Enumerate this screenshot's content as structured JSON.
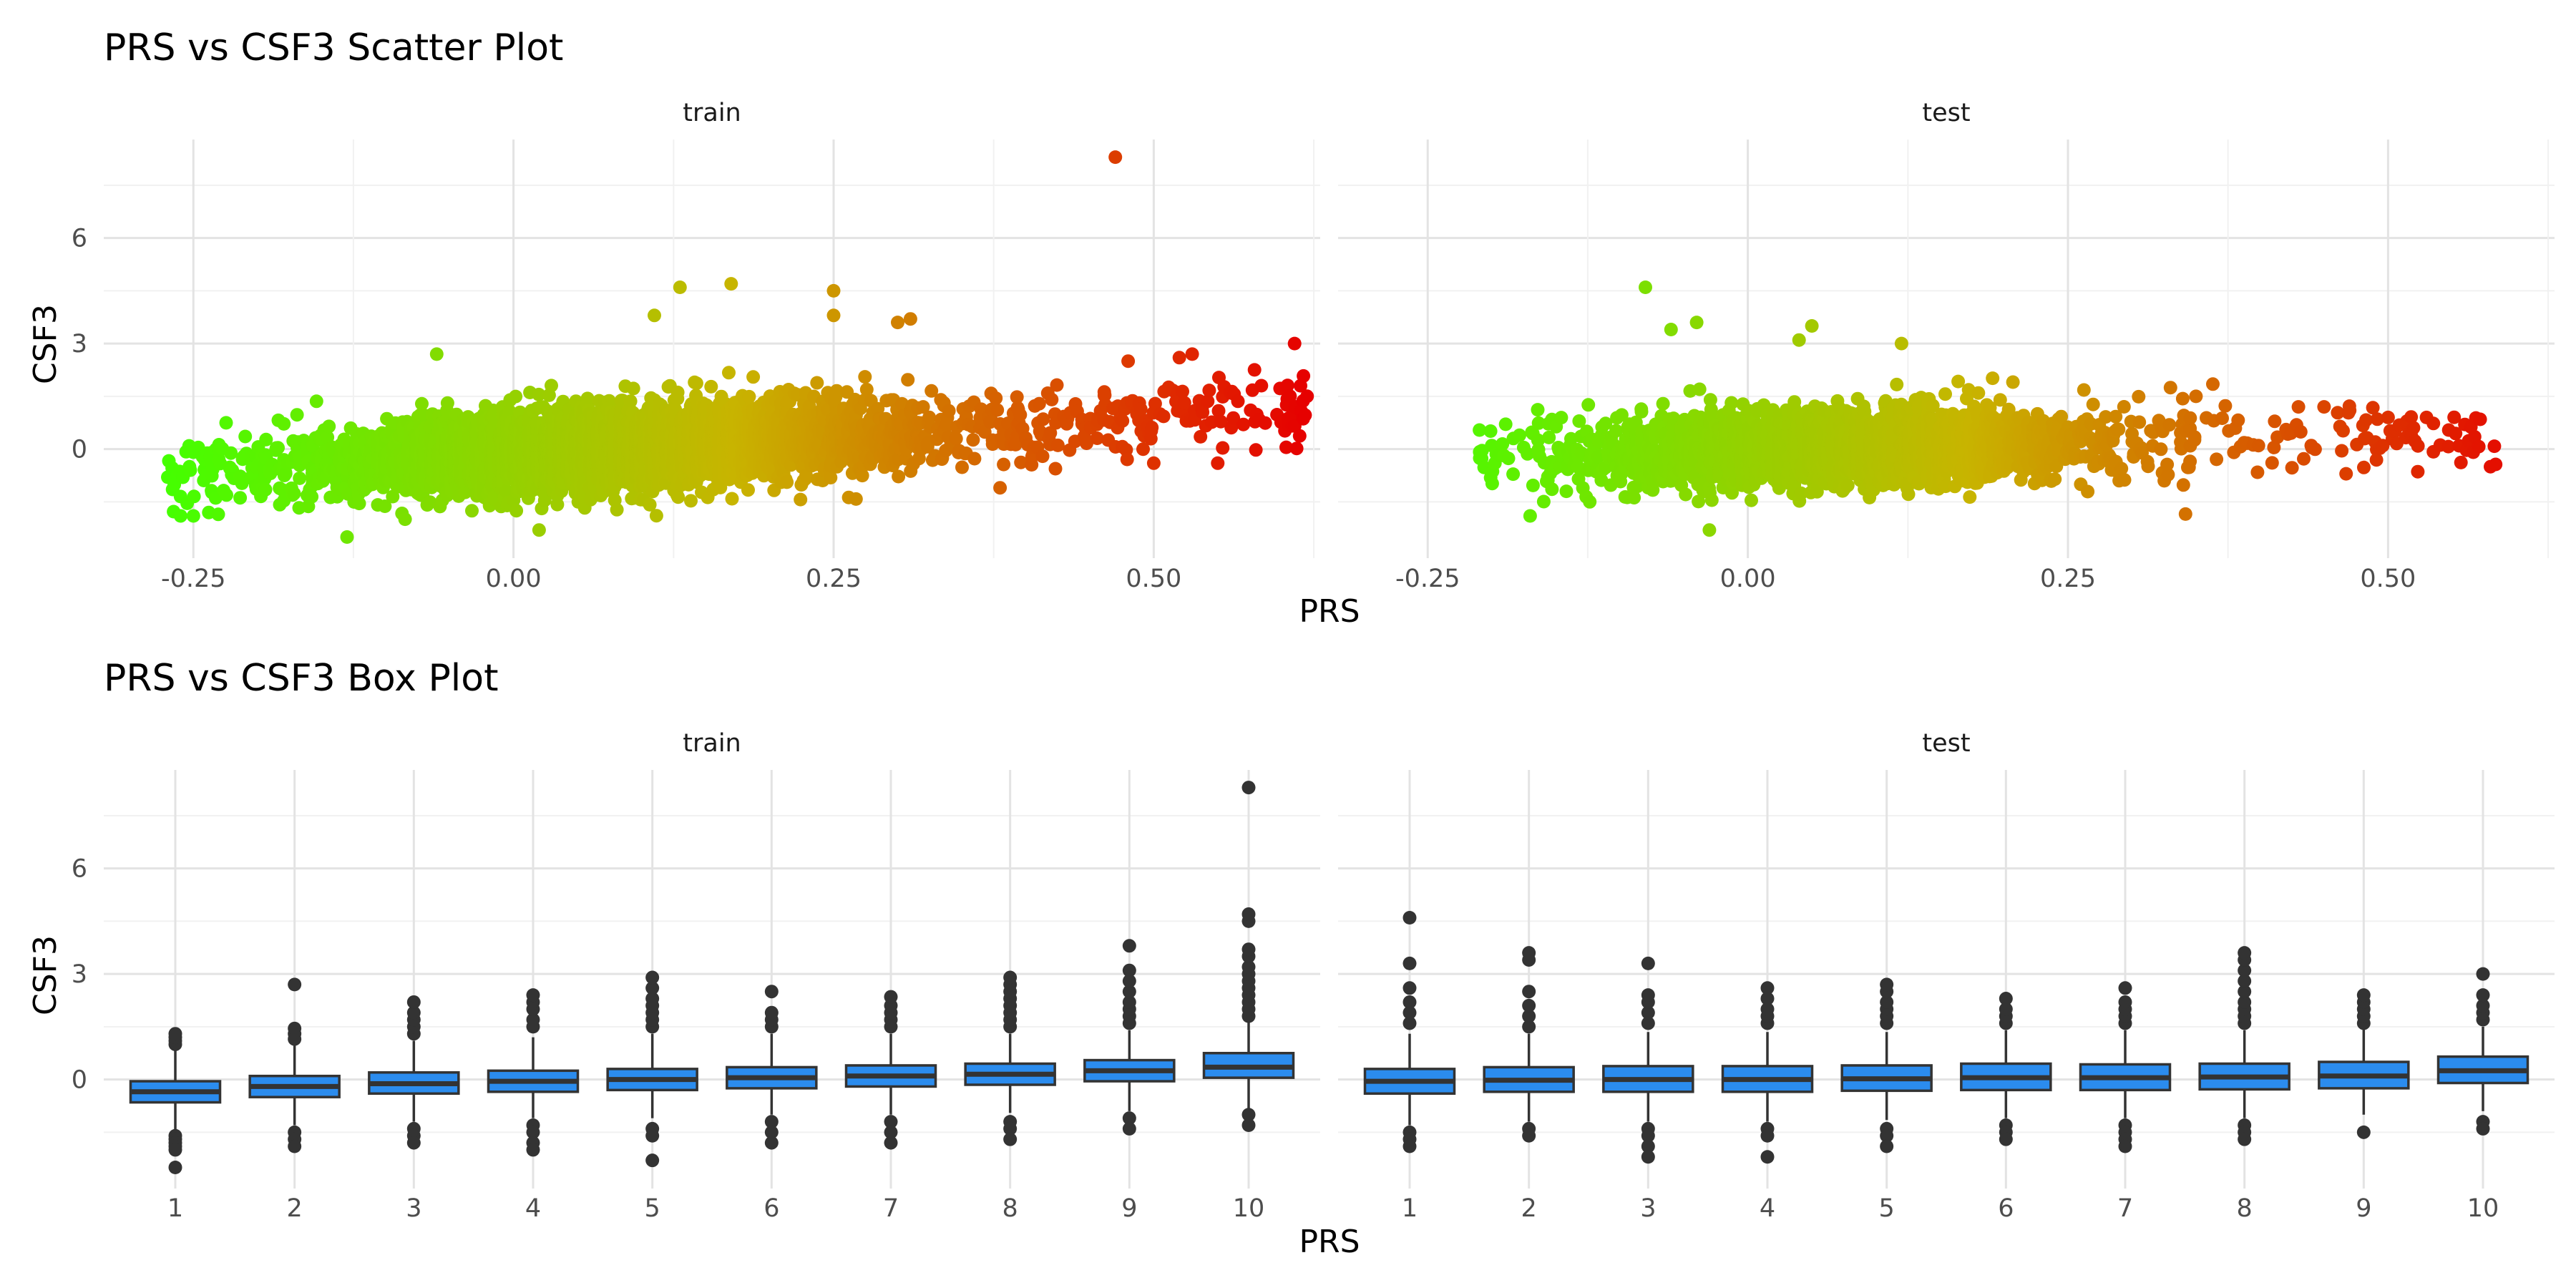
{
  "chart_data": [
    {
      "type": "scatter",
      "title": "PRS vs CSF3 Scatter Plot",
      "xlabel": "PRS",
      "ylabel": "CSF3",
      "facets": [
        "train",
        "test"
      ],
      "x_ticks": [
        -0.25,
        0.0,
        0.25,
        0.5
      ],
      "x_tick_labels": [
        "-0.25",
        "0.00",
        "0.25",
        "0.50"
      ],
      "y_ticks": [
        0,
        3,
        6
      ],
      "y_tick_labels": [
        "0",
        "3",
        "6"
      ],
      "xlim": [
        -0.32,
        0.63
      ],
      "ylim": [
        -3.1,
        8.8
      ],
      "grid": true,
      "legend": "none",
      "color_scale": {
        "low": "#44ff00",
        "mid": "#c8b400",
        "high": "#e60000",
        "x_low": -0.27,
        "x_high": 0.62
      },
      "trend": {
        "train": {
          "intercept": -0.12,
          "slope": 2.0
        },
        "test": {
          "intercept": 0.0,
          "slope": 0.6
        }
      },
      "x_range": {
        "train": [
          -0.27,
          0.62
        ],
        "test": [
          -0.21,
          0.59
        ]
      },
      "point_count": {
        "train": 5200,
        "test": 2600
      },
      "notable_points": {
        "train": [
          {
            "x": 0.47,
            "y": 8.3
          },
          {
            "x": 0.61,
            "y": 3.0
          },
          {
            "x": 0.56,
            "y": 1.6
          },
          {
            "x": 0.53,
            "y": 2.7
          },
          {
            "x": 0.52,
            "y": 2.6
          },
          {
            "x": 0.48,
            "y": 2.5
          },
          {
            "x": 0.17,
            "y": 4.7
          },
          {
            "x": 0.13,
            "y": 4.6
          },
          {
            "x": 0.25,
            "y": 4.5
          },
          {
            "x": 0.25,
            "y": 3.8
          },
          {
            "x": 0.31,
            "y": 3.7
          },
          {
            "x": 0.3,
            "y": 3.6
          },
          {
            "x": 0.11,
            "y": 3.8
          },
          {
            "x": -0.06,
            "y": 2.7
          },
          {
            "x": -0.27,
            "y": -0.8
          },
          {
            "x": -0.26,
            "y": -1.9
          },
          {
            "x": -0.25,
            "y": -1.9
          },
          {
            "x": -0.13,
            "y": -2.5
          },
          {
            "x": 0.02,
            "y": -2.3
          },
          {
            "x": 0.38,
            "y": -1.1
          },
          {
            "x": 0.5,
            "y": -0.4
          },
          {
            "x": 0.55,
            "y": -0.4
          },
          {
            "x": 0.57,
            "y": 0.7
          }
        ],
        "test": [
          {
            "x": -0.08,
            "y": 4.6
          },
          {
            "x": -0.04,
            "y": 3.6
          },
          {
            "x": -0.06,
            "y": 3.4
          },
          {
            "x": 0.05,
            "y": 3.5
          },
          {
            "x": 0.04,
            "y": 3.1
          },
          {
            "x": 0.12,
            "y": 3.0
          },
          {
            "x": -0.2,
            "y": 0.1
          },
          {
            "x": -0.17,
            "y": -1.9
          },
          {
            "x": -0.03,
            "y": -2.3
          },
          {
            "x": 0.58,
            "y": -0.5
          },
          {
            "x": 0.56,
            "y": 0.7
          },
          {
            "x": 0.53,
            "y": 0.9
          },
          {
            "x": 0.5,
            "y": 0.9
          },
          {
            "x": 0.49,
            "y": 0.2
          },
          {
            "x": 0.47,
            "y": 1.1
          },
          {
            "x": 0.45,
            "y": 1.2
          },
          {
            "x": 0.44,
            "y": 0.1
          },
          {
            "x": 0.43,
            "y": 1.2
          },
          {
            "x": 0.35,
            "y": 1.5
          },
          {
            "x": 0.29,
            "y": -0.9
          },
          {
            "x": 0.26,
            "y": -1.0
          }
        ]
      }
    },
    {
      "type": "box",
      "title": "PRS vs CSF3 Box Plot",
      "xlabel": "PRS",
      "ylabel": "CSF3",
      "facets": [
        "train",
        "test"
      ],
      "categories": [
        "1",
        "2",
        "3",
        "4",
        "5",
        "6",
        "7",
        "8",
        "9",
        "10"
      ],
      "y_ticks": [
        0,
        3,
        6
      ],
      "y_tick_labels": [
        "0",
        "3",
        "6"
      ],
      "ylim": [
        -3.1,
        8.8
      ],
      "grid": true,
      "legend": "none",
      "box_color": "#2b8cee",
      "stats": {
        "train": [
          {
            "q1": -0.65,
            "median": -0.35,
            "q3": -0.05,
            "whisker_low": -1.5,
            "whisker_high": 0.85,
            "outliers": [
              1.0,
              1.1,
              1.2,
              1.3,
              -1.6,
              -1.7,
              -1.8,
              -1.9,
              -2.0,
              -2.5
            ]
          },
          {
            "q1": -0.5,
            "median": -0.2,
            "q3": 0.1,
            "whisker_low": -1.3,
            "whisker_high": 1.0,
            "outliers": [
              1.15,
              1.3,
              1.45,
              2.7,
              -1.5,
              -1.7,
              -1.9
            ]
          },
          {
            "q1": -0.4,
            "median": -0.12,
            "q3": 0.2,
            "whisker_low": -1.2,
            "whisker_high": 1.1,
            "outliers": [
              1.3,
              1.5,
              1.7,
              1.9,
              2.2,
              -1.4,
              -1.6,
              -1.8
            ]
          },
          {
            "q1": -0.35,
            "median": -0.05,
            "q3": 0.25,
            "whisker_low": -1.1,
            "whisker_high": 1.2,
            "outliers": [
              1.5,
              1.7,
              2.0,
              2.2,
              2.4,
              -1.3,
              -1.5,
              -1.8,
              -2.0
            ]
          },
          {
            "q1": -0.3,
            "median": 0.0,
            "q3": 0.3,
            "whisker_low": -1.1,
            "whisker_high": 1.3,
            "outliers": [
              1.5,
              1.7,
              1.9,
              2.1,
              2.3,
              2.6,
              2.9,
              -1.4,
              -1.6,
              -2.3
            ]
          },
          {
            "q1": -0.25,
            "median": 0.05,
            "q3": 0.35,
            "whisker_low": -1.0,
            "whisker_high": 1.3,
            "outliers": [
              1.5,
              1.7,
              1.9,
              2.5,
              -1.2,
              -1.5,
              -1.8
            ]
          },
          {
            "q1": -0.2,
            "median": 0.1,
            "q3": 0.4,
            "whisker_low": -1.0,
            "whisker_high": 1.3,
            "outliers": [
              1.5,
              1.7,
              1.9,
              2.1,
              2.35,
              -1.2,
              -1.5,
              -1.8
            ]
          },
          {
            "q1": -0.15,
            "median": 0.15,
            "q3": 0.45,
            "whisker_low": -0.95,
            "whisker_high": 1.3,
            "outliers": [
              1.5,
              1.7,
              1.9,
              2.1,
              2.3,
              2.5,
              2.7,
              2.9,
              -1.2,
              -1.4,
              -1.7
            ]
          },
          {
            "q1": -0.05,
            "median": 0.25,
            "q3": 0.55,
            "whisker_low": -0.9,
            "whisker_high": 1.4,
            "outliers": [
              1.6,
              1.8,
              2.0,
              2.2,
              2.5,
              2.8,
              3.1,
              3.8,
              -1.1,
              -1.4
            ]
          },
          {
            "q1": 0.05,
            "median": 0.35,
            "q3": 0.75,
            "whisker_low": -0.9,
            "whisker_high": 1.65,
            "outliers": [
              1.8,
              2.0,
              2.2,
              2.4,
              2.6,
              2.8,
              3.0,
              3.2,
              3.5,
              3.7,
              4.5,
              4.7,
              8.3,
              -1.0,
              -1.3
            ]
          }
        ],
        "test": [
          {
            "q1": -0.4,
            "median": -0.05,
            "q3": 0.3,
            "whisker_low": -1.3,
            "whisker_high": 1.3,
            "outliers": [
              1.6,
              1.9,
              2.2,
              2.6,
              3.3,
              4.6,
              -1.5,
              -1.7,
              -1.9
            ]
          },
          {
            "q1": -0.35,
            "median": -0.02,
            "q3": 0.35,
            "whisker_low": -1.2,
            "whisker_high": 1.3,
            "outliers": [
              1.5,
              1.8,
              2.1,
              2.5,
              3.4,
              3.6,
              -1.4,
              -1.6
            ]
          },
          {
            "q1": -0.35,
            "median": 0.0,
            "q3": 0.38,
            "whisker_low": -1.2,
            "whisker_high": 1.35,
            "outliers": [
              1.6,
              1.9,
              2.2,
              2.4,
              3.3,
              -1.4,
              -1.6,
              -1.9,
              -2.2
            ]
          },
          {
            "q1": -0.35,
            "median": 0.0,
            "q3": 0.38,
            "whisker_low": -1.2,
            "whisker_high": 1.35,
            "outliers": [
              1.6,
              1.8,
              2.0,
              2.3,
              2.6,
              -1.4,
              -1.6,
              -2.2
            ]
          },
          {
            "q1": -0.32,
            "median": 0.02,
            "q3": 0.4,
            "whisker_low": -1.15,
            "whisker_high": 1.35,
            "outliers": [
              1.6,
              1.8,
              2.0,
              2.2,
              2.5,
              2.7,
              -1.4,
              -1.6,
              -1.9
            ]
          },
          {
            "q1": -0.3,
            "median": 0.05,
            "q3": 0.45,
            "whisker_low": -1.1,
            "whisker_high": 1.4,
            "outliers": [
              1.6,
              1.8,
              2.0,
              2.3,
              -1.3,
              -1.5,
              -1.7
            ]
          },
          {
            "q1": -0.3,
            "median": 0.05,
            "q3": 0.43,
            "whisker_low": -1.1,
            "whisker_high": 1.4,
            "outliers": [
              1.6,
              1.8,
              2.0,
              2.2,
              2.6,
              -1.3,
              -1.5,
              -1.7,
              -1.9
            ]
          },
          {
            "q1": -0.28,
            "median": 0.07,
            "q3": 0.45,
            "whisker_low": -1.1,
            "whisker_high": 1.4,
            "outliers": [
              1.6,
              1.8,
              2.0,
              2.2,
              2.5,
              2.8,
              3.1,
              3.4,
              3.6,
              -1.3,
              -1.5,
              -1.7
            ]
          },
          {
            "q1": -0.25,
            "median": 0.1,
            "q3": 0.5,
            "whisker_low": -1.0,
            "whisker_high": 1.45,
            "outliers": [
              1.6,
              1.8,
              2.0,
              2.2,
              2.4,
              -1.5
            ]
          },
          {
            "q1": -0.1,
            "median": 0.25,
            "q3": 0.65,
            "whisker_low": -0.9,
            "whisker_high": 1.5,
            "outliers": [
              1.7,
              1.9,
              2.1,
              2.4,
              3.0,
              -1.2,
              -1.4
            ]
          }
        ]
      }
    }
  ]
}
